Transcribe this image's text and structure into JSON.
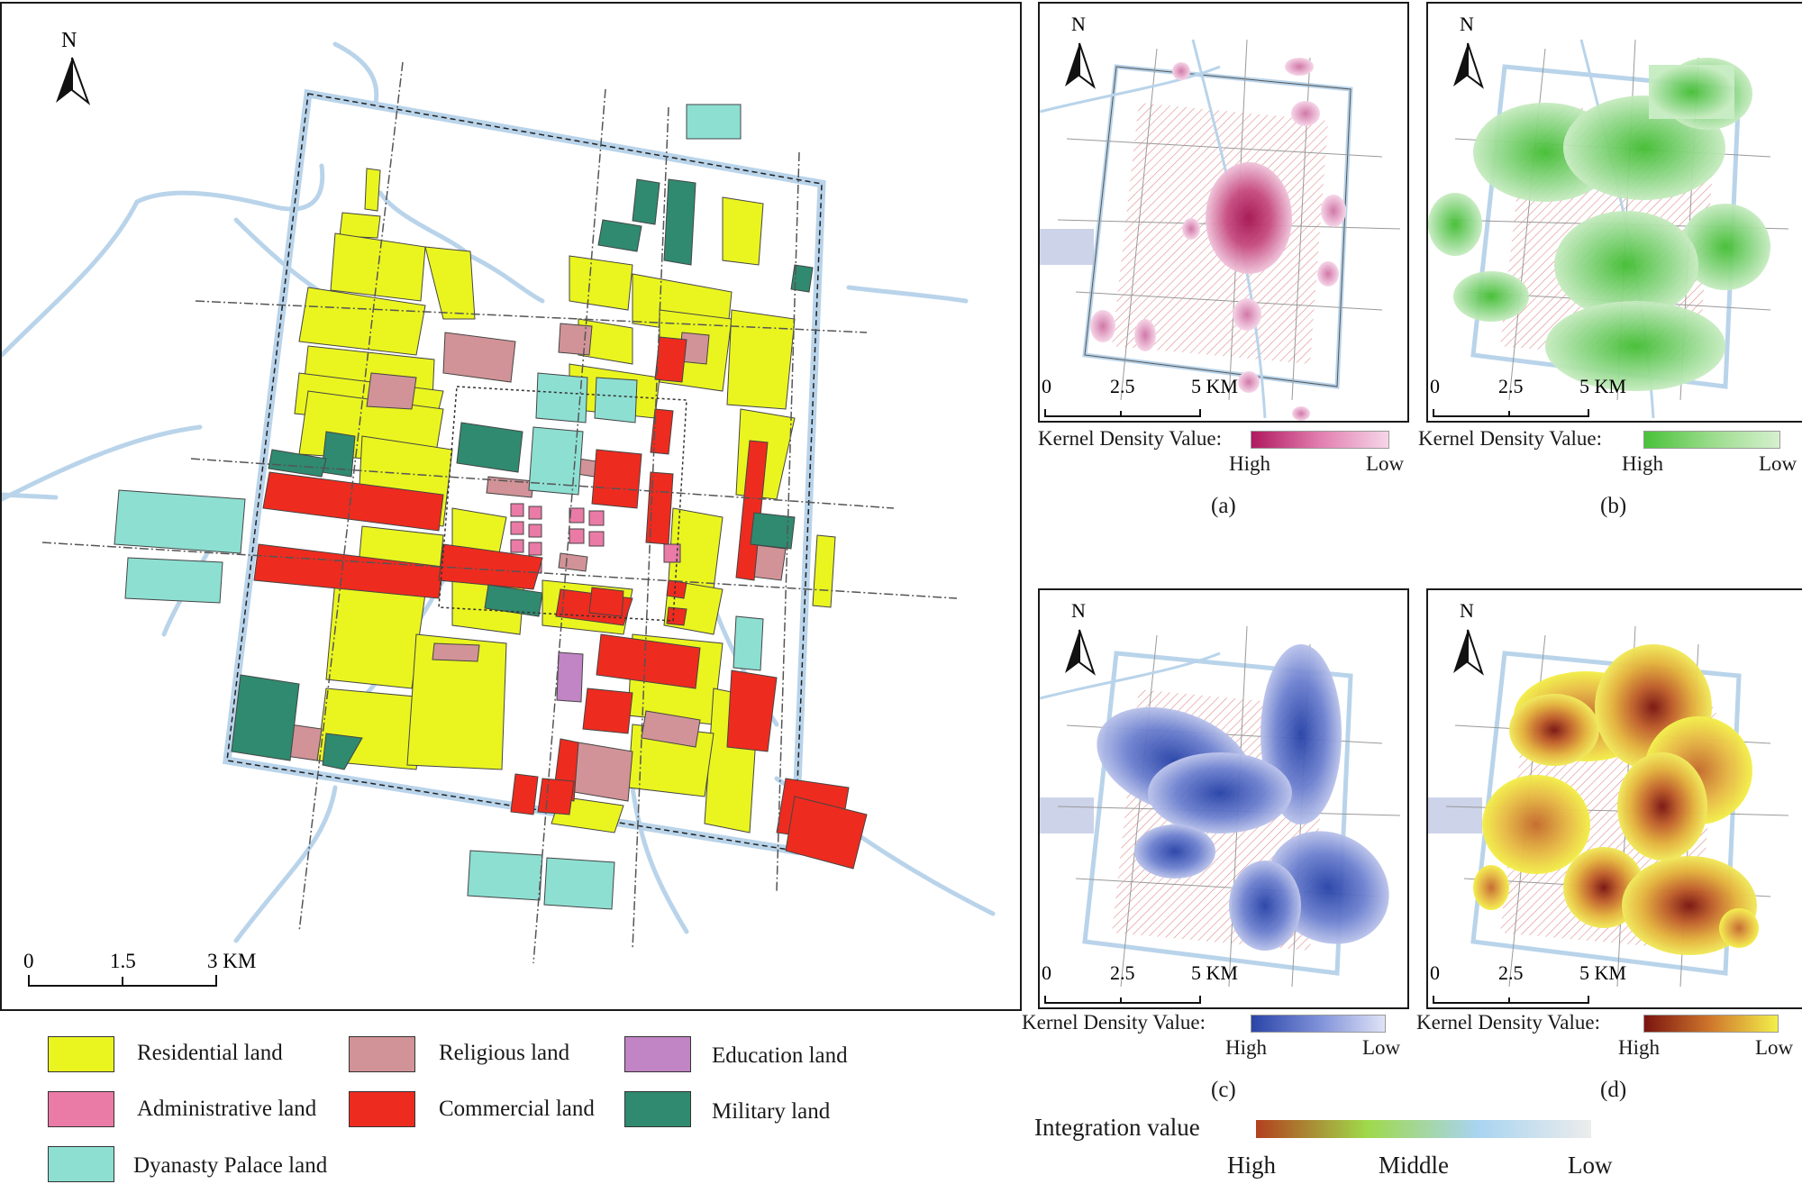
{
  "main_map": {
    "north_label": "N",
    "scale": {
      "ticks": [
        "0",
        "1.5",
        "3 KM"
      ]
    }
  },
  "legend": {
    "items": [
      {
        "label": "Residential land",
        "color": "#eaf51f"
      },
      {
        "label": "Religious land",
        "color": "#d19397"
      },
      {
        "label": "Education land",
        "color": "#c184c4"
      },
      {
        "label": "Administrative land",
        "color": "#ea7aa6"
      },
      {
        "label": "Commercial land",
        "color": "#ee2b1f"
      },
      {
        "label": "Military land",
        "color": "#2f8a70"
      },
      {
        "label": "Dyanasty Palace land",
        "color": "#8ddfd2"
      }
    ]
  },
  "panels": [
    {
      "id": "a",
      "caption": "(a)",
      "north": "N",
      "scale": [
        "0",
        "2.5",
        "5 KM"
      ],
      "kd_title": "Kernel Density Value:",
      "high": "High",
      "low": "Low",
      "color_high": "#b0195f",
      "color_low": "#f6d6e8"
    },
    {
      "id": "b",
      "caption": "(b)",
      "north": "N",
      "scale": [
        "0",
        "2.5",
        "5 KM"
      ],
      "kd_title": "Kernel Density Value:",
      "high": "High",
      "low": "Low",
      "color_high": "#49c23a",
      "color_low": "#d6f0cf"
    },
    {
      "id": "c",
      "caption": "(c)",
      "north": "N",
      "scale": [
        "0",
        "2.5",
        "5 KM"
      ],
      "kd_title": "Kernel Density Value:",
      "high": "High",
      "low": "Low",
      "color_high": "#2a45a8",
      "color_low": "#dfe3f6"
    },
    {
      "id": "d",
      "caption": "(d)",
      "north": "N",
      "scale": [
        "0",
        "2.5",
        "5 KM"
      ],
      "kd_title": "Kernel Density Value:",
      "high": "High",
      "low": "Low",
      "color_high": "#7a1410",
      "color_low": "#f3ef4a"
    }
  ],
  "integration": {
    "title": "Integration value",
    "high": "High",
    "middle": "Middle",
    "low": "Low",
    "colors": [
      "#b3401f",
      "#9fd94a",
      "#a8d4f0",
      "#e8e8e8"
    ]
  }
}
